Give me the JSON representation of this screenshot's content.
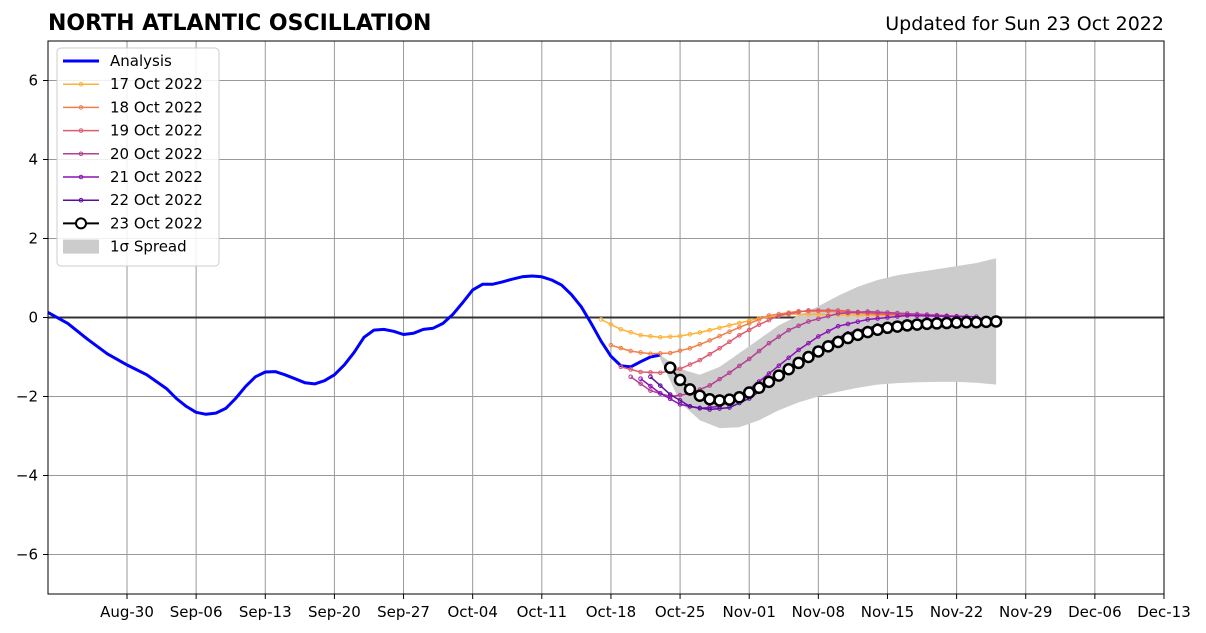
{
  "chart_data": {
    "type": "line",
    "title": "NORTH ATLANTIC OSCILLATION",
    "subtitle": "Updated for Sun 23 Oct 2022",
    "xlabel": "",
    "ylabel": "",
    "xlim": [
      "2022-08-22",
      "2022-12-13"
    ],
    "ylim": [
      -7,
      7
    ],
    "grid": true,
    "legend_position": "top-left",
    "x_ticks": [
      {
        "date": "2022-08-30",
        "label": "Aug-30"
      },
      {
        "date": "2022-09-06",
        "label": "Sep-06"
      },
      {
        "date": "2022-09-13",
        "label": "Sep-13"
      },
      {
        "date": "2022-09-20",
        "label": "Sep-20"
      },
      {
        "date": "2022-09-27",
        "label": "Sep-27"
      },
      {
        "date": "2022-10-04",
        "label": "Oct-04"
      },
      {
        "date": "2022-10-11",
        "label": "Oct-11"
      },
      {
        "date": "2022-10-18",
        "label": "Oct-18"
      },
      {
        "date": "2022-10-25",
        "label": "Oct-25"
      },
      {
        "date": "2022-11-01",
        "label": "Nov-01"
      },
      {
        "date": "2022-11-08",
        "label": "Nov-08"
      },
      {
        "date": "2022-11-15",
        "label": "Nov-15"
      },
      {
        "date": "2022-11-22",
        "label": "Nov-22"
      },
      {
        "date": "2022-11-29",
        "label": "Nov-29"
      },
      {
        "date": "2022-12-06",
        "label": "Dec-06"
      },
      {
        "date": "2022-12-13",
        "label": "Dec-13"
      }
    ],
    "y_ticks": [
      {
        "value": 6,
        "label": "6"
      },
      {
        "value": 4,
        "label": "4"
      },
      {
        "value": 2,
        "label": "2"
      },
      {
        "value": 0,
        "label": "0"
      },
      {
        "value": -2,
        "label": "−2"
      },
      {
        "value": -4,
        "label": "−4"
      },
      {
        "value": -6,
        "label": "−6"
      }
    ],
    "analysis": {
      "name": "Analysis",
      "color": "#0000ff",
      "x": [
        "2022-08-22",
        "2022-08-24",
        "2022-08-26",
        "2022-08-28",
        "2022-08-30",
        "2022-09-01",
        "2022-09-03",
        "2022-09-04",
        "2022-09-05",
        "2022-09-06",
        "2022-09-07",
        "2022-09-08",
        "2022-09-09",
        "2022-09-10",
        "2022-09-11",
        "2022-09-12",
        "2022-09-13",
        "2022-09-14",
        "2022-09-15",
        "2022-09-16",
        "2022-09-17",
        "2022-09-18",
        "2022-09-19",
        "2022-09-20",
        "2022-09-21",
        "2022-09-22",
        "2022-09-23",
        "2022-09-24",
        "2022-09-25",
        "2022-09-26",
        "2022-09-27",
        "2022-09-28",
        "2022-09-29",
        "2022-09-30",
        "2022-10-01",
        "2022-10-02",
        "2022-10-03",
        "2022-10-04",
        "2022-10-05",
        "2022-10-06",
        "2022-10-07",
        "2022-10-08",
        "2022-10-09",
        "2022-10-10",
        "2022-10-11",
        "2022-10-12",
        "2022-10-13",
        "2022-10-14",
        "2022-10-15",
        "2022-10-16",
        "2022-10-17",
        "2022-10-18",
        "2022-10-19",
        "2022-10-20",
        "2022-10-21",
        "2022-10-22",
        "2022-10-23"
      ],
      "y": [
        0.13,
        -0.15,
        -0.55,
        -0.92,
        -1.2,
        -1.45,
        -1.8,
        -2.05,
        -2.25,
        -2.4,
        -2.45,
        -2.42,
        -2.3,
        -2.05,
        -1.75,
        -1.5,
        -1.38,
        -1.37,
        -1.45,
        -1.55,
        -1.65,
        -1.68,
        -1.6,
        -1.45,
        -1.2,
        -0.88,
        -0.5,
        -0.32,
        -0.3,
        -0.35,
        -0.43,
        -0.4,
        -0.3,
        -0.27,
        -0.15,
        0.08,
        0.38,
        0.7,
        0.84,
        0.84,
        0.9,
        0.97,
        1.03,
        1.05,
        1.03,
        0.95,
        0.82,
        0.58,
        0.27,
        -0.15,
        -0.6,
        -0.98,
        -1.22,
        -1.25,
        -1.12,
        -1.0,
        -0.95
      ]
    },
    "forecasts": [
      {
        "name": "17 Oct 2022",
        "color": "#fbb33b",
        "start": "2022-10-17",
        "end": "2022-11-20",
        "anchors": [
          [
            0,
            -0.05
          ],
          [
            2,
            -0.3
          ],
          [
            4,
            -0.45
          ],
          [
            6,
            -0.5
          ],
          [
            8,
            -0.47
          ],
          [
            10,
            -0.38
          ],
          [
            13,
            -0.2
          ],
          [
            16,
            -0.02
          ],
          [
            19,
            0.08
          ],
          [
            22,
            0.08
          ],
          [
            27,
            0.05
          ],
          [
            34,
            0.05
          ]
        ]
      },
      {
        "name": "18 Oct 2022",
        "color": "#f07f4b",
        "start": "2022-10-18",
        "end": "2022-11-21",
        "anchors": [
          [
            0,
            -0.7
          ],
          [
            2,
            -0.85
          ],
          [
            4,
            -0.92
          ],
          [
            6,
            -0.9
          ],
          [
            8,
            -0.78
          ],
          [
            10,
            -0.58
          ],
          [
            13,
            -0.25
          ],
          [
            16,
            0.05
          ],
          [
            19,
            0.16
          ],
          [
            22,
            0.16
          ],
          [
            27,
            0.08
          ],
          [
            34,
            0.04
          ]
        ]
      },
      {
        "name": "19 Oct 2022",
        "color": "#dc5c70",
        "start": "2022-10-19",
        "end": "2022-11-22",
        "anchors": [
          [
            0,
            -1.25
          ],
          [
            2,
            -1.38
          ],
          [
            4,
            -1.4
          ],
          [
            6,
            -1.3
          ],
          [
            8,
            -1.08
          ],
          [
            10,
            -0.78
          ],
          [
            12,
            -0.45
          ],
          [
            14,
            -0.18
          ],
          [
            16,
            0.05
          ],
          [
            19,
            0.18
          ],
          [
            22,
            0.18
          ],
          [
            26,
            0.1
          ],
          [
            30,
            0.05
          ],
          [
            34,
            0.02
          ]
        ]
      },
      {
        "name": "20 Oct 2022",
        "color": "#b43f93",
        "start": "2022-10-20",
        "end": "2022-11-23",
        "anchors": [
          [
            0,
            -1.5
          ],
          [
            2,
            -1.85
          ],
          [
            4,
            -2.0
          ],
          [
            6,
            -1.93
          ],
          [
            8,
            -1.72
          ],
          [
            10,
            -1.4
          ],
          [
            12,
            -1.05
          ],
          [
            14,
            -0.65
          ],
          [
            16,
            -0.32
          ],
          [
            18,
            -0.1
          ],
          [
            21,
            0.1
          ],
          [
            24,
            0.15
          ],
          [
            28,
            0.1
          ],
          [
            34,
            0.02
          ]
        ]
      },
      {
        "name": "21 Oct 2022",
        "color": "#8a13b4",
        "start": "2022-10-21",
        "end": "2022-11-24",
        "anchors": [
          [
            0,
            -1.55
          ],
          [
            2,
            -1.92
          ],
          [
            4,
            -2.2
          ],
          [
            6,
            -2.3
          ],
          [
            8,
            -2.25
          ],
          [
            10,
            -2.0
          ],
          [
            12,
            -1.62
          ],
          [
            14,
            -1.22
          ],
          [
            16,
            -0.82
          ],
          [
            18,
            -0.48
          ],
          [
            20,
            -0.22
          ],
          [
            23,
            -0.05
          ],
          [
            27,
            0.05
          ],
          [
            34,
            0.02
          ]
        ]
      },
      {
        "name": "22 Oct 2022",
        "color": "#5a0d9c",
        "start": "2022-10-22",
        "end": "2022-11-25",
        "anchors": [
          [
            0,
            -1.5
          ],
          [
            2,
            -1.95
          ],
          [
            4,
            -2.25
          ],
          [
            6,
            -2.33
          ],
          [
            8,
            -2.28
          ],
          [
            10,
            -2.05
          ],
          [
            12,
            -1.7
          ],
          [
            14,
            -1.32
          ],
          [
            16,
            -0.95
          ],
          [
            18,
            -0.63
          ],
          [
            20,
            -0.4
          ],
          [
            23,
            -0.2
          ],
          [
            27,
            -0.08
          ],
          [
            34,
            -0.02
          ]
        ]
      },
      {
        "name": "23 Oct 2022",
        "color": "#000000",
        "start": "2022-10-24",
        "end": "2022-11-26",
        "anchors": [
          [
            0,
            -1.27
          ],
          [
            1,
            -1.58
          ],
          [
            2,
            -1.82
          ],
          [
            3,
            -1.98
          ],
          [
            4,
            -2.07
          ],
          [
            5,
            -2.1
          ],
          [
            6,
            -2.08
          ],
          [
            7,
            -2.02
          ],
          [
            8,
            -1.9
          ],
          [
            9,
            -1.78
          ],
          [
            10,
            -1.63
          ],
          [
            11,
            -1.47
          ],
          [
            12,
            -1.31
          ],
          [
            13,
            -1.15
          ],
          [
            14,
            -1.0
          ],
          [
            15,
            -0.86
          ],
          [
            16,
            -0.73
          ],
          [
            17,
            -0.62
          ],
          [
            18,
            -0.52
          ],
          [
            19,
            -0.44
          ],
          [
            20,
            -0.37
          ],
          [
            21,
            -0.31
          ],
          [
            22,
            -0.26
          ],
          [
            23,
            -0.23
          ],
          [
            24,
            -0.2
          ],
          [
            25,
            -0.18
          ],
          [
            26,
            -0.16
          ],
          [
            27,
            -0.15
          ],
          [
            28,
            -0.14
          ],
          [
            29,
            -0.13
          ],
          [
            30,
            -0.12
          ],
          [
            31,
            -0.12
          ],
          [
            32,
            -0.11
          ],
          [
            33,
            -0.1
          ]
        ]
      }
    ],
    "spread": {
      "name": "1σ Spread",
      "color": "#cccccc",
      "x": [
        "2022-10-23",
        "2022-10-25",
        "2022-10-27",
        "2022-10-29",
        "2022-10-31",
        "2022-11-02",
        "2022-11-04",
        "2022-11-06",
        "2022-11-08",
        "2022-11-10",
        "2022-11-12",
        "2022-11-14",
        "2022-11-16",
        "2022-11-18",
        "2022-11-20",
        "2022-11-22",
        "2022-11-24",
        "2022-11-26"
      ],
      "upper": [
        -0.95,
        -1.3,
        -1.45,
        -1.25,
        -0.9,
        -0.55,
        -0.2,
        0.05,
        0.28,
        0.55,
        0.78,
        0.95,
        1.07,
        1.15,
        1.22,
        1.3,
        1.38,
        1.5
      ],
      "lower": [
        -1.05,
        -2.15,
        -2.6,
        -2.8,
        -2.78,
        -2.6,
        -2.35,
        -2.15,
        -2.0,
        -1.88,
        -1.78,
        -1.7,
        -1.66,
        -1.64,
        -1.63,
        -1.63,
        -1.65,
        -1.7
      ]
    },
    "legend": {
      "analysis_label": "Analysis",
      "spread_label": "1σ Spread"
    }
  }
}
